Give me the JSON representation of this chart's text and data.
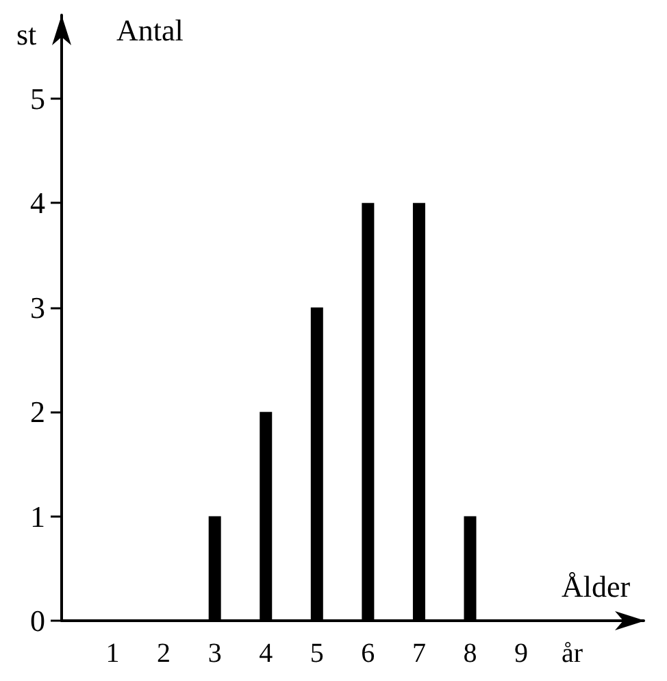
{
  "chart_data": {
    "type": "bar",
    "xlabel": "Ålder",
    "ylabel": "Antal",
    "x": [
      3,
      4,
      5,
      6,
      7,
      8
    ],
    "values": [
      1,
      2,
      3,
      4,
      4,
      1
    ],
    "color": "#000000",
    "xlim": [
      0,
      11.4
    ],
    "xticks": [
      1,
      2,
      3,
      4,
      5,
      6,
      7,
      8,
      9,
      {
        "value": 10,
        "label": "år"
      }
    ],
    "ylim": [
      0,
      5.8
    ],
    "yticks": [
      0,
      1,
      2,
      3,
      4,
      5
    ],
    "annotations": [
      "st"
    ],
    "grid": false
  }
}
